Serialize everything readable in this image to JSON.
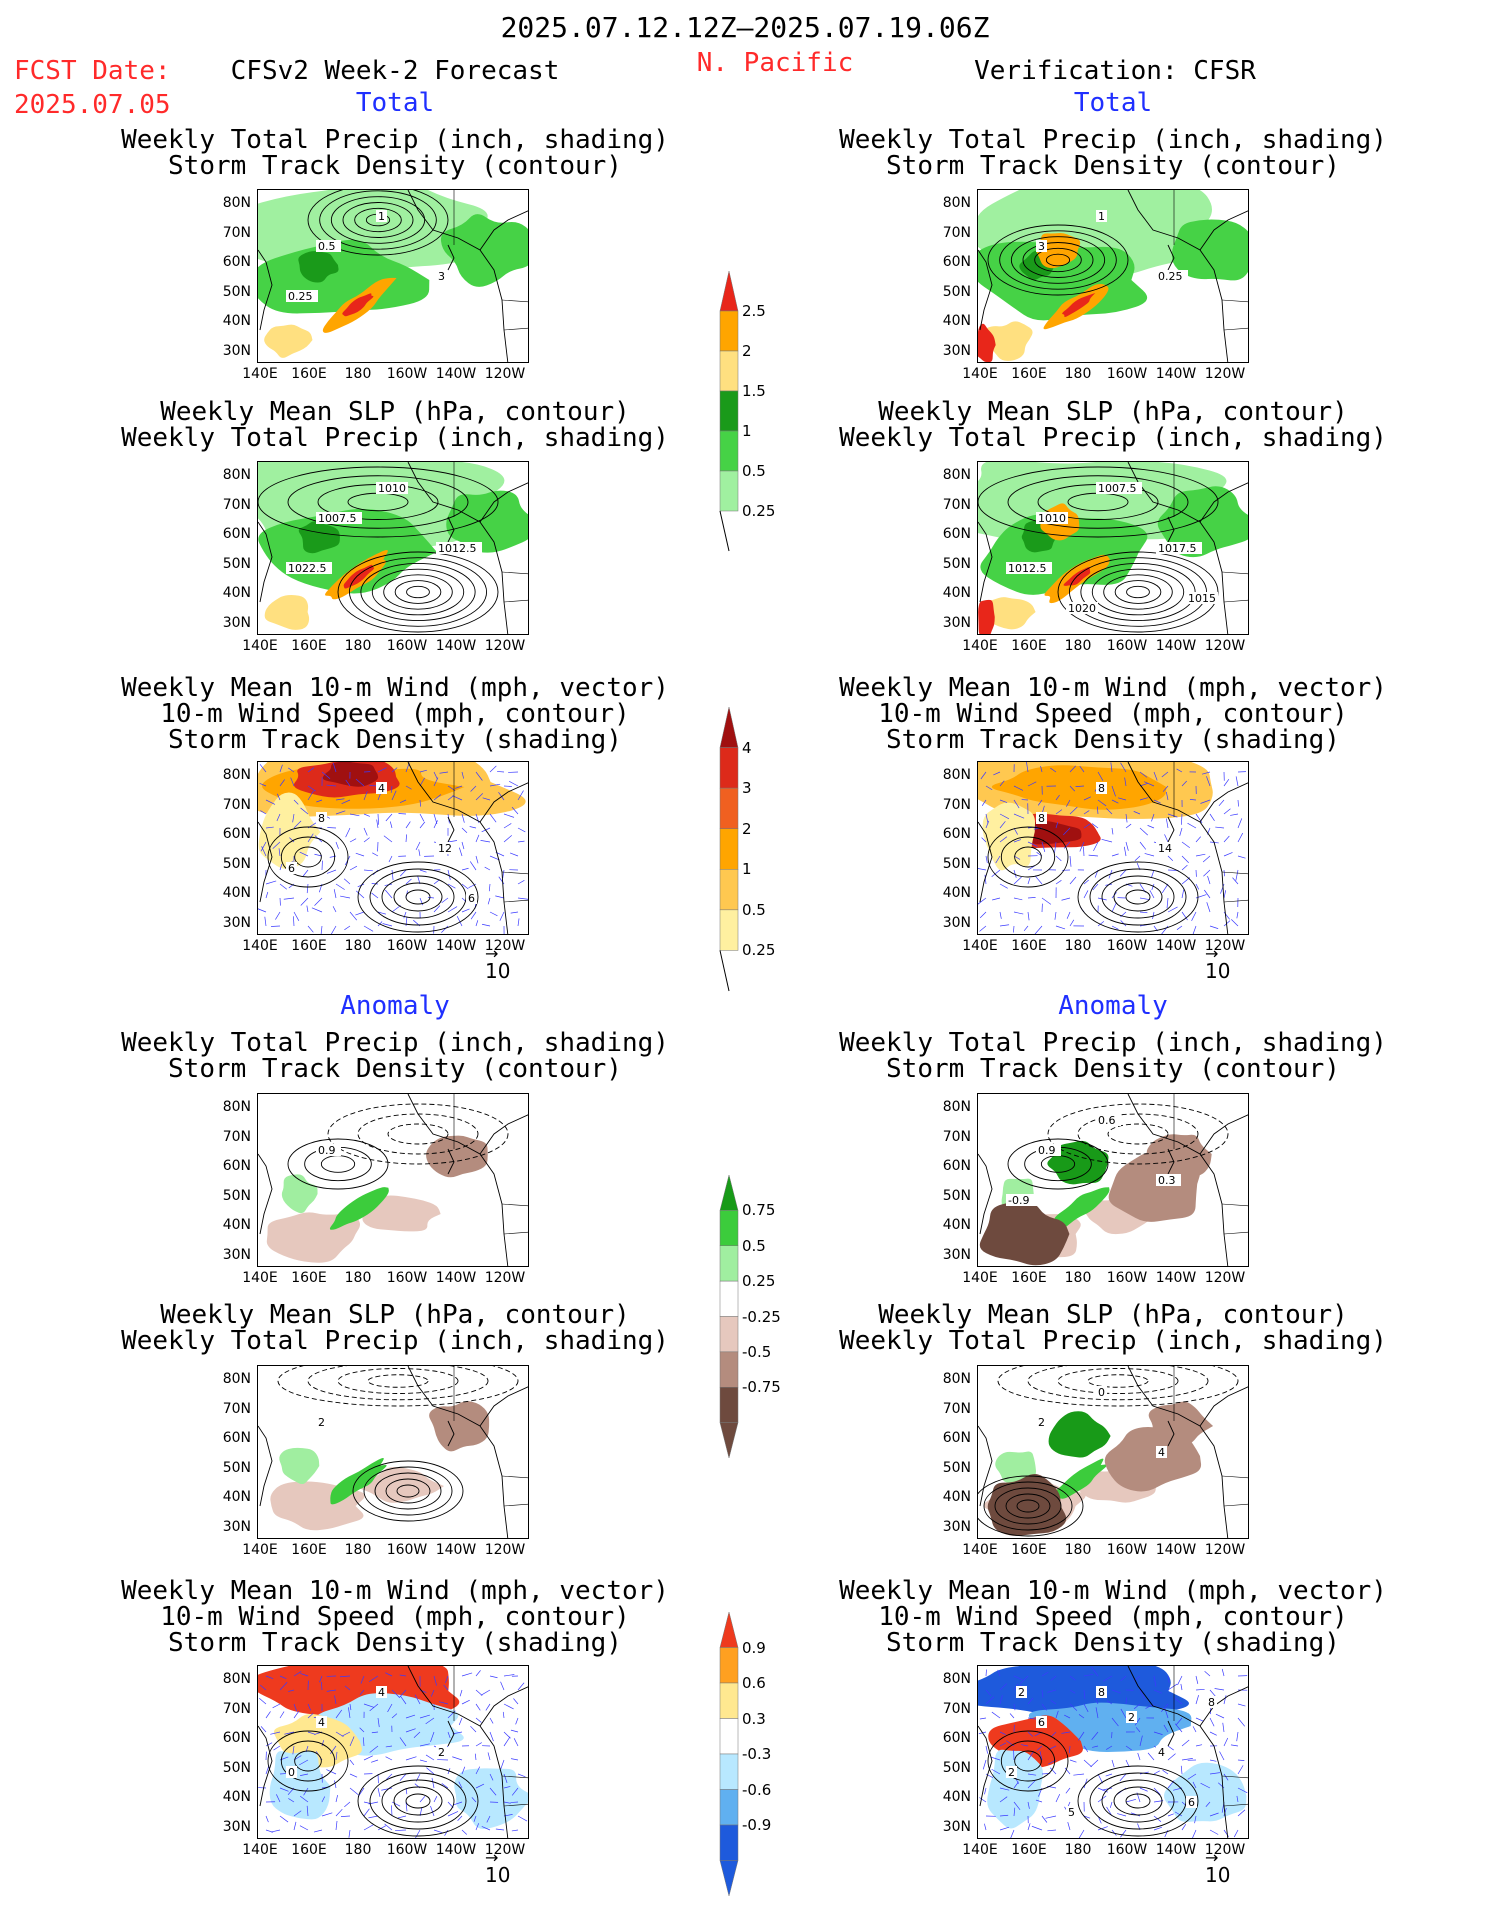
{
  "header": {
    "date_range": "2025.07.12.12Z–2025.07.19.06Z",
    "fcst_label": "FCST Date:",
    "fcst_date": "2025.07.05",
    "model": "CFSv2 Week-2 Forecast",
    "region": "N. Pacific",
    "verification": "Verification: CFSR"
  },
  "sections": {
    "total": "Total",
    "anomaly": "Anomaly"
  },
  "titles": {
    "precip_storm": [
      "Weekly Total Precip (inch, shading)",
      "Storm Track Density (contour)"
    ],
    "slp_precip": [
      "Weekly Mean SLP (hPa, contour)",
      "Weekly Total Precip (inch, shading)"
    ],
    "wind_storm": [
      "Weekly Mean 10-m Wind (mph, vector)",
      "10-m Wind Speed (mph, contour)",
      "Storm Track Density (shading)"
    ]
  },
  "axes": {
    "lat_ticks": [
      "80N",
      "70N",
      "60N",
      "50N",
      "40N",
      "30N"
    ],
    "lon_ticks": [
      "140E",
      "160E",
      "180",
      "160W",
      "140W",
      "120W"
    ]
  },
  "vector_ref": "10",
  "colorbars": {
    "precip_total": {
      "labels": [
        "2.5",
        "2",
        "1.5",
        "1",
        "0.5",
        "0.25"
      ],
      "colors": [
        "#e8261a",
        "#ffa500",
        "#ffe080",
        "#1a9a1a",
        "#46d246",
        "#a0f0a0"
      ]
    },
    "storm_total": {
      "labels": [
        "4",
        "3",
        "2",
        "1",
        "0.5",
        "0.25"
      ],
      "colors": [
        "#a01010",
        "#dd2a1a",
        "#f06020",
        "#ffa500",
        "#ffc850",
        "#fff0a0"
      ]
    },
    "precip_anom": {
      "labels": [
        "0.75",
        "0.5",
        "0.25",
        "-0.25",
        "-0.5",
        "-0.75"
      ],
      "colors": [
        "#189a18",
        "#3ccc3c",
        "#a0eea0",
        "#ffffff",
        "#e6c8be",
        "#b48c7e",
        "#6e4a3e"
      ]
    },
    "storm_anom": {
      "labels": [
        "0.9",
        "0.6",
        "0.3",
        "-0.3",
        "-0.6",
        "-0.9"
      ],
      "colors": [
        "#ee3a1e",
        "#ffa020",
        "#ffe890",
        "#ffffff",
        "#b8e8ff",
        "#60b0f0",
        "#1e5adc"
      ]
    }
  },
  "chart_data": [
    {
      "type": "heatmap",
      "panel": "forecast-total-precip-storm",
      "field": "Weekly Total Precip (inch)",
      "levels": [
        0.25,
        0.5,
        1,
        1.5,
        2,
        2.5
      ],
      "contour_labels": [
        "0.5",
        "1",
        "3",
        "0.25"
      ]
    },
    {
      "type": "heatmap",
      "panel": "forecast-total-slp-precip",
      "field": "Weekly Mean SLP (hPa)",
      "contour_labels": [
        "1007.5",
        "1010",
        "1012.5",
        "1022.5"
      ]
    },
    {
      "type": "heatmap",
      "panel": "forecast-total-wind-storm",
      "field": "Storm Track Density",
      "levels": [
        0.25,
        0.5,
        1,
        2,
        3,
        4
      ],
      "contour_labels": [
        "8",
        "4",
        "12",
        "6",
        "6"
      ]
    },
    {
      "type": "heatmap",
      "panel": "verif-total-precip-storm",
      "field": "Weekly Total Precip (inch)",
      "contour_labels": [
        "3",
        "1",
        "0.25"
      ]
    },
    {
      "type": "heatmap",
      "panel": "verif-total-slp-precip",
      "field": "Weekly Mean SLP (hPa)",
      "contour_labels": [
        "1010",
        "1007.5",
        "1017.5",
        "1012.5",
        "1015",
        "1020"
      ]
    },
    {
      "type": "heatmap",
      "panel": "verif-total-wind-storm",
      "field": "Storm Track Density",
      "contour_labels": [
        "8",
        "8",
        "14"
      ]
    },
    {
      "type": "heatmap",
      "panel": "forecast-anom-precip-storm",
      "field": "Precip anomaly (inch)",
      "levels": [
        -0.75,
        -0.5,
        -0.25,
        0.25,
        0.5,
        0.75
      ],
      "contour_labels": [
        "0.9"
      ]
    },
    {
      "type": "heatmap",
      "panel": "forecast-anom-slp-precip",
      "field": "SLP anomaly (hPa)",
      "contour_labels": [
        "2"
      ]
    },
    {
      "type": "heatmap",
      "panel": "forecast-anom-wind-storm",
      "field": "Storm Track Density anomaly",
      "levels": [
        -0.9,
        -0.6,
        -0.3,
        0.3,
        0.6,
        0.9
      ],
      "contour_labels": [
        "4",
        "4",
        "2",
        "0"
      ]
    },
    {
      "type": "heatmap",
      "panel": "verif-anom-precip-storm",
      "field": "Precip anomaly (inch)",
      "contour_labels": [
        "0.9",
        "0.6",
        "0.3",
        "-0.9"
      ]
    },
    {
      "type": "heatmap",
      "panel": "verif-anom-slp-precip",
      "field": "SLP anomaly (hPa)",
      "contour_labels": [
        "2",
        "0",
        "4"
      ]
    },
    {
      "type": "heatmap",
      "panel": "verif-anom-wind-storm",
      "field": "Storm Track Density anomaly",
      "contour_labels": [
        "6",
        "8",
        "4",
        "2",
        "6",
        "5",
        "2",
        "2",
        "8"
      ]
    }
  ]
}
